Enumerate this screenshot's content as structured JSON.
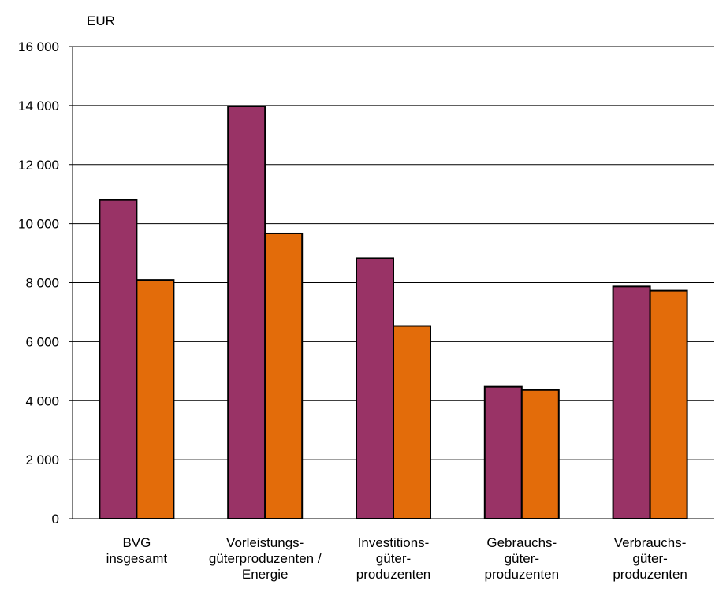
{
  "chart_data": {
    "type": "bar",
    "title": "",
    "unit_label": "EUR",
    "xlabel": "",
    "ylabel": "",
    "ylim": [
      0,
      16000
    ],
    "yticks": [
      0,
      2000,
      4000,
      6000,
      8000,
      10000,
      12000,
      14000,
      16000
    ],
    "ytick_labels": [
      "0",
      "2 000",
      "4 000",
      "6 000",
      "8 000",
      "10 000",
      "12 000",
      "14 000",
      "16 000"
    ],
    "grid": true,
    "categories": [
      [
        "BVG",
        "insgesamt"
      ],
      [
        "Vorleistungs-",
        "güterproduzenten /",
        "Energie"
      ],
      [
        "Investitions-",
        "güter-",
        "produzenten"
      ],
      [
        "Gebrauchs-",
        "güter-",
        "produzenten"
      ],
      [
        "Verbrauchs-",
        "güter-",
        "produzenten"
      ]
    ],
    "series": [
      {
        "color": "#993366",
        "values": [
          10800,
          13970,
          8830,
          4470,
          7870
        ]
      },
      {
        "color": "#E36C0A",
        "values": [
          8090,
          9670,
          6530,
          4360,
          7730
        ]
      }
    ]
  }
}
